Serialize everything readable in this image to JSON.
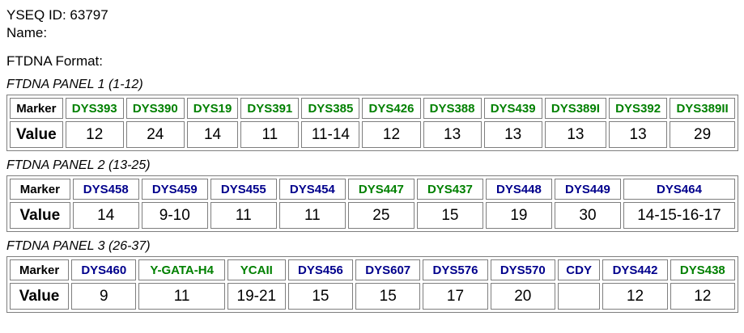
{
  "header": {
    "yseq_id_line": "YSEQ ID: 63797",
    "name_line": "Name:",
    "format_heading": "FTDNA Format:"
  },
  "table_row_labels": {
    "marker": "Marker",
    "value": "Value"
  },
  "colors": {
    "marker_green": "#008000",
    "marker_blue": "#00008c",
    "value_text": "#000000",
    "table_border": "#7e7e7e"
  },
  "panels": [
    {
      "title": "FTDNA PANEL 1 (1-12)",
      "markers": [
        {
          "name": "DYS393",
          "value": "12",
          "color": "green"
        },
        {
          "name": "DYS390",
          "value": "24",
          "color": "green"
        },
        {
          "name": "DYS19",
          "value": "14",
          "color": "green"
        },
        {
          "name": "DYS391",
          "value": "11",
          "color": "green"
        },
        {
          "name": "DYS385",
          "value": "11-14",
          "color": "green"
        },
        {
          "name": "DYS426",
          "value": "12",
          "color": "green"
        },
        {
          "name": "DYS388",
          "value": "13",
          "color": "green"
        },
        {
          "name": "DYS439",
          "value": "13",
          "color": "green"
        },
        {
          "name": "DYS389I",
          "value": "13",
          "color": "green"
        },
        {
          "name": "DYS392",
          "value": "13",
          "color": "green"
        },
        {
          "name": "DYS389II",
          "value": "29",
          "color": "green"
        }
      ]
    },
    {
      "title": "FTDNA PANEL 2 (13-25)",
      "markers": [
        {
          "name": "DYS458",
          "value": "14",
          "color": "blue"
        },
        {
          "name": "DYS459",
          "value": "9-10",
          "color": "blue"
        },
        {
          "name": "DYS455",
          "value": "11",
          "color": "blue"
        },
        {
          "name": "DYS454",
          "value": "11",
          "color": "blue"
        },
        {
          "name": "DYS447",
          "value": "25",
          "color": "green"
        },
        {
          "name": "DYS437",
          "value": "15",
          "color": "green"
        },
        {
          "name": "DYS448",
          "value": "19",
          "color": "blue"
        },
        {
          "name": "DYS449",
          "value": "30",
          "color": "blue"
        },
        {
          "name": "DYS464",
          "value": "14-15-16-17",
          "color": "blue"
        }
      ]
    },
    {
      "title": "FTDNA PANEL 3 (26-37)",
      "markers": [
        {
          "name": "DYS460",
          "value": "9",
          "color": "blue"
        },
        {
          "name": "Y-GATA-H4",
          "value": "11",
          "color": "green"
        },
        {
          "name": "YCAII",
          "value": "19-21",
          "color": "green"
        },
        {
          "name": "DYS456",
          "value": "15",
          "color": "blue"
        },
        {
          "name": "DYS607",
          "value": "15",
          "color": "blue"
        },
        {
          "name": "DYS576",
          "value": "17",
          "color": "blue"
        },
        {
          "name": "DYS570",
          "value": "20",
          "color": "blue"
        },
        {
          "name": "CDY",
          "value": "",
          "color": "blue"
        },
        {
          "name": "DYS442",
          "value": "12",
          "color": "blue"
        },
        {
          "name": "DYS438",
          "value": "12",
          "color": "green"
        }
      ]
    }
  ]
}
